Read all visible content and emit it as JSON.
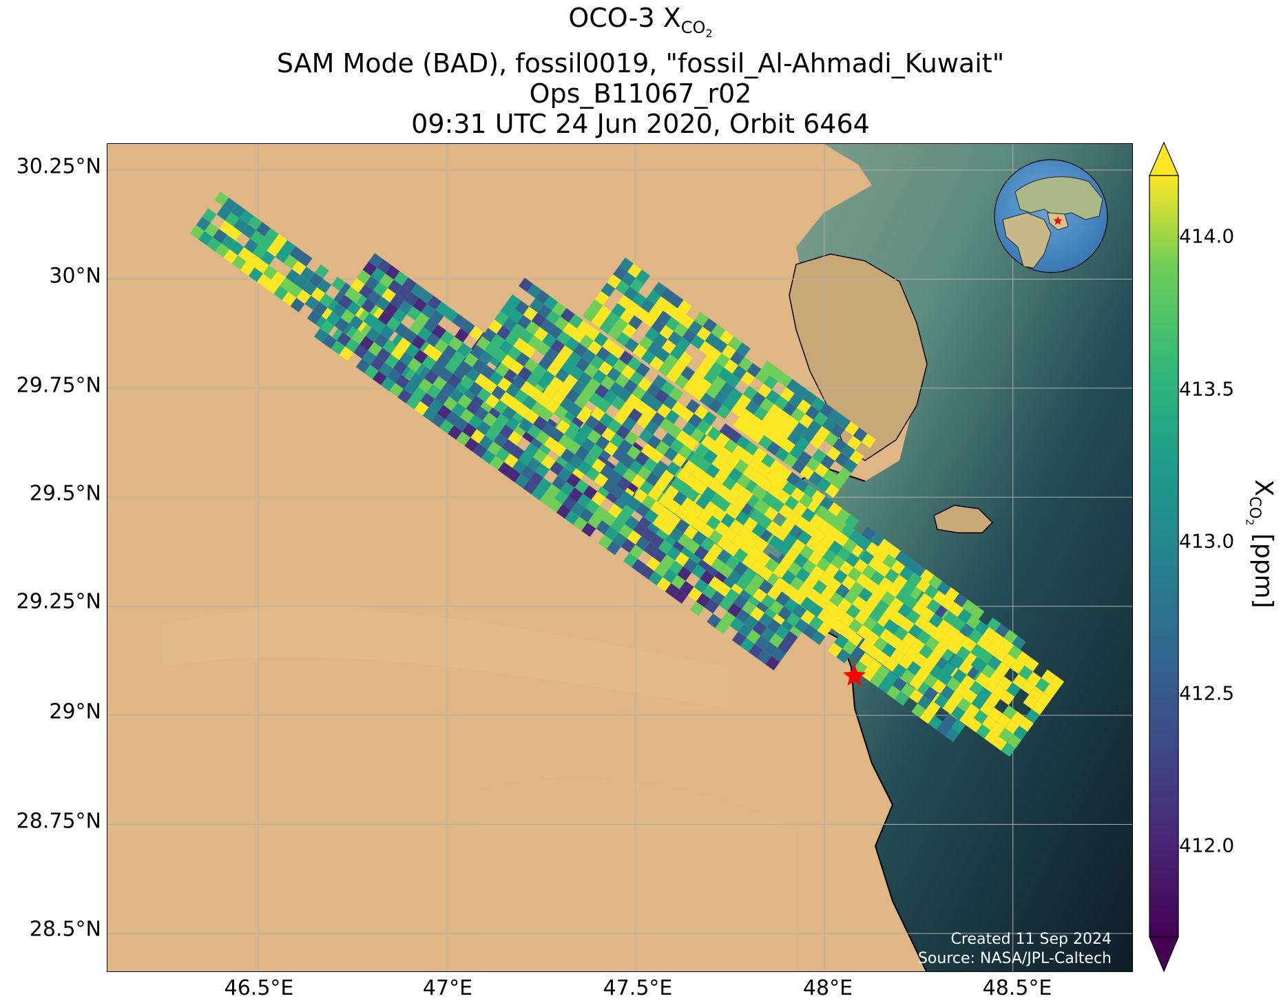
{
  "title": {
    "line1_main": "OCO-3 X",
    "line1_sub": "CO",
    "line1_subsub": "2",
    "line2": "SAM Mode (BAD), fossil0019, \"fossil_Al-Ahmadi_Kuwait\"",
    "line3": "Ops_B11067_r02",
    "line4": "09:31 UTC 24 Jun 2020, Orbit 6464"
  },
  "latitude_labels": [
    "30.25°N",
    "30°N",
    "29.75°N",
    "29.5°N",
    "29.25°N",
    "29°N",
    "28.75°N",
    "28.5°N"
  ],
  "longitude_labels": [
    "46.5°E",
    "47°E",
    "47.5°E",
    "48°E",
    "48.5°E"
  ],
  "colorbar": {
    "ticks": [
      "414.0",
      "413.5",
      "413.0",
      "412.5",
      "412.0"
    ],
    "tick_values": [
      414.0,
      413.5,
      413.0,
      412.5,
      412.0
    ],
    "range": [
      411.7,
      414.2
    ],
    "colormap": "viridis",
    "extend": "both",
    "label_main": "X",
    "label_sub": "CO",
    "label_subsub": "2",
    "label_units": " [ppm]"
  },
  "credits": {
    "created": "Created 11 Sep 2024",
    "source": "Source: NASA/JPL-Caltech"
  },
  "target_marker": {
    "name": "fossil_Al-Ahmadi_Kuwait",
    "lon": 48.08,
    "lat": 29.09,
    "color": "#ff0000"
  },
  "map_extent": {
    "lon": [
      46.1,
      48.82
    ],
    "lat": [
      28.41,
      30.31
    ]
  },
  "colors": {
    "desert": "#dfb684",
    "sea_shallow": "#6e9c86",
    "sea_deep": "#0f2530",
    "grid": "#b0b0b0"
  },
  "inset_globe": {
    "marker_color": "#ff0000",
    "marker_lon": 48.08,
    "marker_lat": 29.09
  }
}
